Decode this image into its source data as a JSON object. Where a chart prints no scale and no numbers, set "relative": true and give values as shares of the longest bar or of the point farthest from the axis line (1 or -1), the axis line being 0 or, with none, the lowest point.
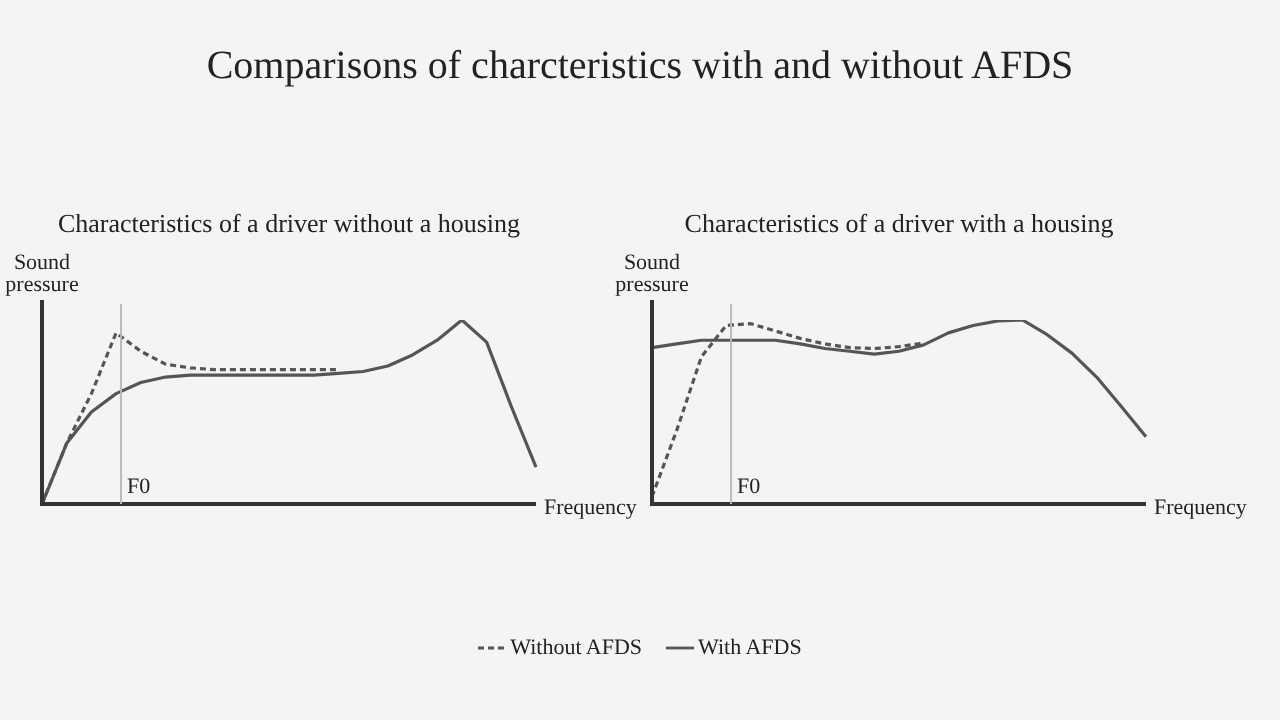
{
  "chart_data": [
    {
      "type": "other",
      "title": "Comparisons of charcteristics with and without AFDS"
    },
    {
      "type": "line",
      "title": "Characteristics of a driver without a housing",
      "xlabel": "Frequency",
      "ylabel": "Sound pressure",
      "relative": true,
      "categories": [
        null,
        null,
        null,
        null,
        null,
        null,
        null,
        null,
        null,
        null,
        null,
        null,
        null,
        null,
        null,
        null,
        null,
        null,
        null,
        null,
        null
      ],
      "marker": "none",
      "annotations": [
        "F0"
      ],
      "series": [
        {
          "color": "#555555",
          "line_style": "dashed",
          "values": [
            0,
            0.33,
            0.6,
            0.93,
            0.83,
            0.76,
            0.74,
            0.73,
            0.73,
            0.73,
            0.73,
            0.73,
            0.73,
            null,
            null,
            null,
            null,
            null,
            null,
            null,
            null
          ]
        },
        {
          "color": "#555555",
          "line_style": "solid",
          "values": [
            0,
            0.33,
            0.5,
            0.6,
            0.66,
            0.69,
            0.7,
            0.7,
            0.7,
            0.7,
            0.7,
            0.7,
            0.71,
            0.72,
            0.75,
            0.81,
            0.89,
            1,
            0.88,
            0.53,
            0.2
          ]
        }
      ]
    },
    {
      "type": "line",
      "title": "Characteristics of a driver with a housing",
      "xlabel": "Frequency",
      "ylabel": "Sound pressure",
      "relative": true,
      "categories": [
        null,
        null,
        null,
        null,
        null,
        null,
        null,
        null,
        null,
        null,
        null,
        null,
        null,
        null,
        null,
        null,
        null,
        null,
        null,
        null,
        null
      ],
      "marker": "none",
      "legend": "bottom",
      "annotations": [
        "F0"
      ],
      "series": [
        {
          "name": "Without AFDS",
          "color": "#555555",
          "line_style": "dashed",
          "values": [
            0.04,
            0.4,
            0.8,
            0.97,
            0.98,
            0.94,
            0.9,
            0.87,
            0.85,
            0.845,
            0.855,
            0.875,
            null,
            null,
            null,
            null,
            null,
            null,
            null,
            null,
            null
          ]
        },
        {
          "name": "With AFDS",
          "color": "#555555",
          "line_style": "solid",
          "values": [
            0.85,
            0.87,
            0.89,
            0.89,
            0.89,
            0.89,
            0.87,
            0.845,
            0.83,
            0.815,
            0.83,
            0.865,
            0.93,
            0.97,
            0.995,
            1,
            0.92,
            0.82,
            0.69,
            0.53,
            0.365
          ]
        }
      ]
    }
  ]
}
